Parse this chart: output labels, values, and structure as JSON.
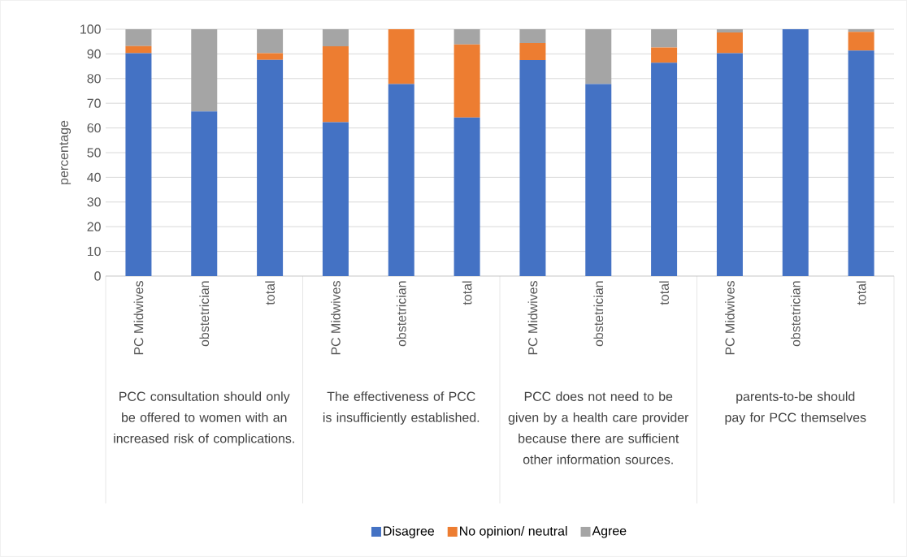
{
  "chart_data": {
    "type": "bar",
    "stacked": true,
    "categories": [
      "PC Midwives",
      "obstetrician",
      "total",
      "PC Midwives",
      "obstetrician",
      "total",
      "PC Midwives",
      "obstetrician",
      "total",
      "PC Midwives",
      "obstetrician",
      "total"
    ],
    "series": [
      {
        "name": "Disagree",
        "color": "#4472c4",
        "values": [
          90.3,
          66.7,
          87.6,
          62.3,
          77.8,
          64.2,
          87.5,
          77.8,
          86.4,
          90.3,
          100,
          91.4
        ]
      },
      {
        "name": "No opinion/ neutral",
        "color": "#ed7d31",
        "values": [
          2.9,
          0,
          2.7,
          30.8,
          22.2,
          29.6,
          6.9,
          0,
          6.2,
          8.4,
          0,
          7.5
        ]
      },
      {
        "name": "Agree",
        "color": "#a5a5a5",
        "values": [
          6.8,
          33.3,
          9.7,
          6.9,
          0,
          6.2,
          5.6,
          22.2,
          7.4,
          1.3,
          0,
          1.1
        ]
      }
    ],
    "ylabel": "percentage",
    "ylim": [
      0,
      100
    ],
    "yticks": [
      0,
      10,
      20,
      30,
      40,
      50,
      60,
      70,
      80,
      90,
      100
    ],
    "grid": "y",
    "legend": "bottom",
    "annotations": [
      "PCC consultation should only be offered to women with an increased risk of complications.",
      "The effectiveness of PCC is insufficiently established.",
      "PCC does not need to be given by a health care provider because there are sufficient other information sources.",
      "parents-to-be should pay for PCC themselves"
    ]
  }
}
